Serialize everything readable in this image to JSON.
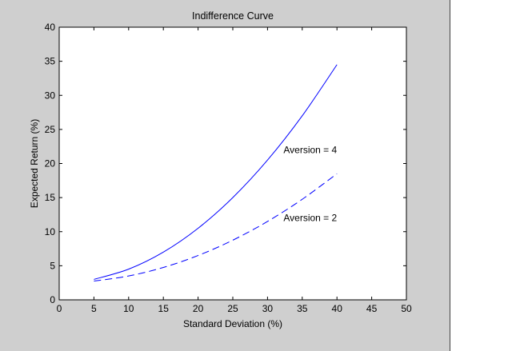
{
  "chart_data": {
    "type": "line",
    "title": "Indifference Curve",
    "xlabel": "Standard Deviation (%)",
    "ylabel": "Expected Return (%)",
    "xlim": [
      0,
      50
    ],
    "ylim": [
      0,
      40
    ],
    "xticks": [
      0,
      5,
      10,
      15,
      20,
      25,
      30,
      35,
      40,
      45,
      50
    ],
    "yticks": [
      0,
      5,
      10,
      15,
      20,
      25,
      30,
      35,
      40
    ],
    "grid": false,
    "series": [
      {
        "name": "Aversion = 4",
        "style": "solid",
        "color": "#0000ff",
        "x": [
          5,
          10,
          15,
          20,
          25,
          30,
          35,
          40
        ],
        "y": [
          3.0,
          4.5,
          7.0,
          10.5,
          15.0,
          20.5,
          27.0,
          34.5
        ]
      },
      {
        "name": "Aversion = 2",
        "style": "dashed",
        "color": "#0000ff",
        "x": [
          5,
          10,
          15,
          20,
          25,
          30,
          35,
          40
        ],
        "y": [
          2.75,
          3.5,
          4.75,
          6.5,
          8.75,
          11.5,
          14.75,
          18.5
        ]
      }
    ],
    "annotations": [
      {
        "text": "Aversion = 4",
        "x": 32.3,
        "y": 22.0
      },
      {
        "text": "Aversion = 2",
        "x": 32.3,
        "y": 12.0
      }
    ]
  },
  "colors": {
    "figure_background": "#cfcfcf",
    "axes_background": "#ffffff",
    "line_color": "#0000ff"
  }
}
